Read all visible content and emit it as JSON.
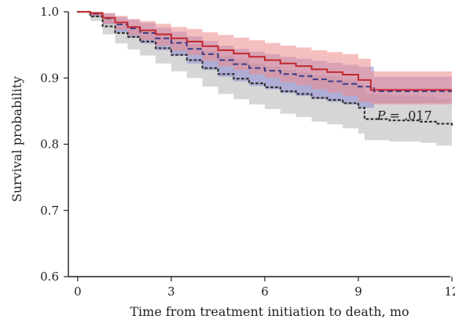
{
  "chart_data": {
    "type": "line",
    "title": "",
    "xlabel": "Time from treatment initiation to death, mo",
    "ylabel": "Survival probability",
    "xlim": [
      -0.3,
      12.1
    ],
    "ylim": [
      0.6,
      1.0
    ],
    "xticks": [
      0,
      3,
      6,
      9,
      12
    ],
    "xtick_labels": [
      "0",
      "3",
      "6",
      "9",
      "12"
    ],
    "yticks": [
      0.6,
      0.7,
      0.8,
      0.9,
      1.0
    ],
    "ytick_labels": [
      "0.6",
      "0.7",
      "0.8",
      "0.9",
      "1.0"
    ],
    "grid": false,
    "legend": "none",
    "annotation": {
      "italic": "P",
      "text": " = .017",
      "x": 9.6,
      "y": 0.837
    },
    "series": [
      {
        "style": "dotted",
        "color": "#333333",
        "band_color": "#b5b5b5",
        "x": [
          0,
          0.4,
          0.8,
          1.2,
          1.6,
          2.0,
          2.5,
          3.0,
          3.5,
          4.0,
          4.5,
          5.0,
          5.5,
          6.0,
          6.5,
          7.0,
          7.5,
          8.0,
          8.5,
          9.0,
          9.2,
          10.0,
          11.0,
          11.5,
          12.0
        ],
        "y": [
          1.0,
          0.993,
          0.978,
          0.968,
          0.962,
          0.955,
          0.945,
          0.935,
          0.927,
          0.915,
          0.906,
          0.899,
          0.892,
          0.886,
          0.88,
          0.876,
          0.87,
          0.867,
          0.862,
          0.855,
          0.838,
          0.836,
          0.834,
          0.831,
          0.829
        ],
        "lower": [
          1.0,
          0.986,
          0.966,
          0.952,
          0.943,
          0.934,
          0.922,
          0.91,
          0.9,
          0.887,
          0.876,
          0.868,
          0.86,
          0.853,
          0.846,
          0.841,
          0.834,
          0.83,
          0.824,
          0.816,
          0.806,
          0.804,
          0.802,
          0.798,
          0.795
        ],
        "upper": [
          1.0,
          1.0,
          0.99,
          0.982,
          0.978,
          0.972,
          0.965,
          0.957,
          0.951,
          0.941,
          0.934,
          0.928,
          0.922,
          0.917,
          0.912,
          0.909,
          0.904,
          0.902,
          0.898,
          0.892,
          0.876,
          0.874,
          0.872,
          0.869,
          0.866
        ]
      },
      {
        "style": "dashed",
        "color": "#3c3c8a",
        "band_color": "#8d8dd6",
        "x": [
          0,
          0.4,
          0.8,
          1.2,
          1.6,
          2.0,
          2.5,
          3.0,
          3.5,
          4.0,
          4.5,
          5.0,
          5.5,
          6.0,
          6.5,
          7.0,
          7.5,
          8.0,
          8.5,
          9.0,
          9.5,
          10.0,
          11.0,
          12.0
        ],
        "y": [
          1.0,
          0.997,
          0.99,
          0.981,
          0.975,
          0.968,
          0.96,
          0.953,
          0.944,
          0.936,
          0.927,
          0.921,
          0.915,
          0.911,
          0.906,
          0.903,
          0.898,
          0.895,
          0.891,
          0.887,
          0.88,
          0.88,
          0.88,
          0.88
        ],
        "lower": [
          1.0,
          0.992,
          0.981,
          0.969,
          0.961,
          0.952,
          0.942,
          0.933,
          0.922,
          0.912,
          0.902,
          0.895,
          0.888,
          0.883,
          0.877,
          0.873,
          0.868,
          0.864,
          0.86,
          0.855,
          0.862,
          0.862,
          0.862,
          0.862
        ],
        "upper": [
          1.0,
          1.0,
          0.998,
          0.992,
          0.988,
          0.983,
          0.976,
          0.97,
          0.963,
          0.956,
          0.949,
          0.944,
          0.94,
          0.936,
          0.932,
          0.929,
          0.926,
          0.923,
          0.92,
          0.917,
          0.902,
          0.902,
          0.902,
          0.902
        ]
      },
      {
        "style": "solid",
        "color": "#c0282e",
        "band_color": "#ee8a8a",
        "x": [
          0,
          0.4,
          0.8,
          1.2,
          1.6,
          2.0,
          2.5,
          3.0,
          3.5,
          4.0,
          4.5,
          5.0,
          5.5,
          6.0,
          6.5,
          7.0,
          7.5,
          8.0,
          8.5,
          9.0,
          9.4,
          10.0,
          11.0,
          12.0
        ],
        "y": [
          1.0,
          0.998,
          0.991,
          0.984,
          0.977,
          0.972,
          0.966,
          0.96,
          0.955,
          0.948,
          0.942,
          0.937,
          0.932,
          0.927,
          0.922,
          0.918,
          0.913,
          0.909,
          0.905,
          0.897,
          0.882,
          0.882,
          0.882,
          0.882
        ],
        "lower": [
          1.0,
          0.993,
          0.982,
          0.973,
          0.964,
          0.957,
          0.949,
          0.941,
          0.935,
          0.926,
          0.918,
          0.912,
          0.906,
          0.9,
          0.894,
          0.889,
          0.883,
          0.878,
          0.873,
          0.864,
          0.86,
          0.86,
          0.86,
          0.86
        ],
        "upper": [
          1.0,
          1.0,
          0.998,
          0.994,
          0.989,
          0.986,
          0.982,
          0.977,
          0.974,
          0.969,
          0.965,
          0.961,
          0.957,
          0.953,
          0.949,
          0.946,
          0.942,
          0.939,
          0.936,
          0.929,
          0.91,
          0.91,
          0.91,
          0.91
        ]
      }
    ]
  }
}
